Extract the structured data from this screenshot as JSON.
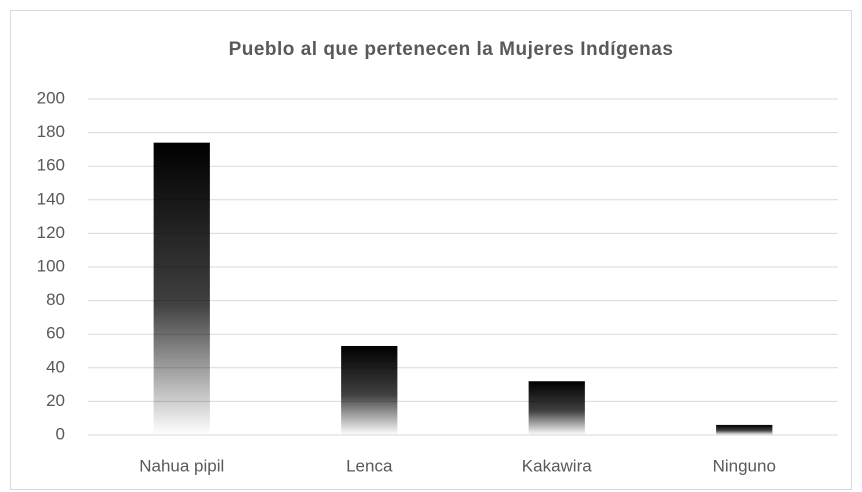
{
  "chart_data": {
    "type": "bar",
    "title": "Pueblo al que pertenecen la Mujeres Indígenas",
    "categories": [
      "Nahua pipil",
      "Lenca",
      "Kakawira",
      "Ninguno"
    ],
    "values": [
      174,
      53,
      32,
      6
    ],
    "color": "#ed7d31",
    "ylim": [
      0,
      200
    ],
    "yticks": [
      0,
      20,
      40,
      60,
      80,
      100,
      120,
      140,
      160,
      180,
      200
    ],
    "grid": true
  }
}
